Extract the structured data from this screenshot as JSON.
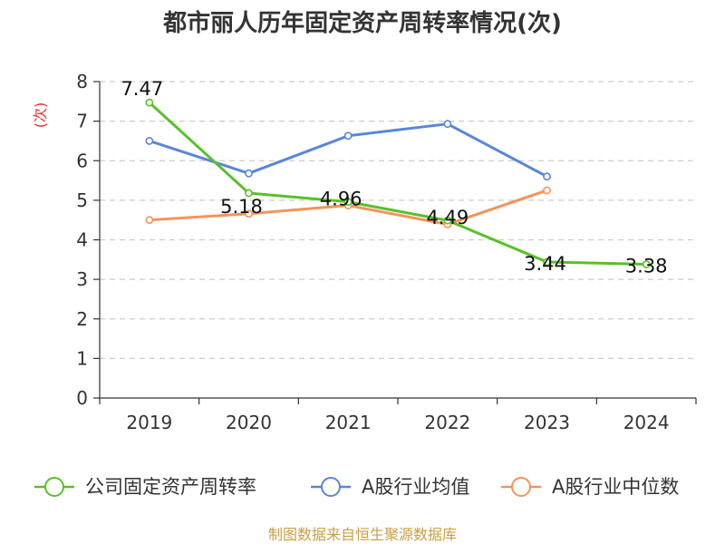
{
  "chart_data": {
    "type": "line",
    "title": "都市丽人历年固定资产周转率情况(次)",
    "ylabel": "(次)",
    "xlabel": "",
    "categories": [
      "2019",
      "2020",
      "2021",
      "2022",
      "2023",
      "2024"
    ],
    "ylim": [
      0,
      8
    ],
    "yticks": [
      0,
      1,
      2,
      3,
      4,
      5,
      6,
      7,
      8
    ],
    "grid": true,
    "legend_position": "bottom",
    "series": [
      {
        "name": "公司固定资产周转率",
        "color": "#5ac02a",
        "values": [
          7.47,
          5.18,
          4.96,
          4.49,
          3.44,
          3.38
        ],
        "labels": [
          "7.47",
          "5.18",
          "4.96",
          "4.49",
          "3.44",
          "3.38"
        ]
      },
      {
        "name": "A股行业均值",
        "color": "#5a86d8",
        "values": [
          6.5,
          5.68,
          6.63,
          6.93,
          5.6,
          null
        ]
      },
      {
        "name": "A股行业中位数",
        "color": "#f5935a",
        "values": [
          4.5,
          4.66,
          4.87,
          4.39,
          5.25,
          null
        ]
      }
    ],
    "source": "制图数据来自恒生聚源数据库",
    "colors": {
      "title": "#333333",
      "ylabel": "#e0302a",
      "source": "#c8a045",
      "grid": "#cccccc",
      "axis": "#333333"
    }
  }
}
